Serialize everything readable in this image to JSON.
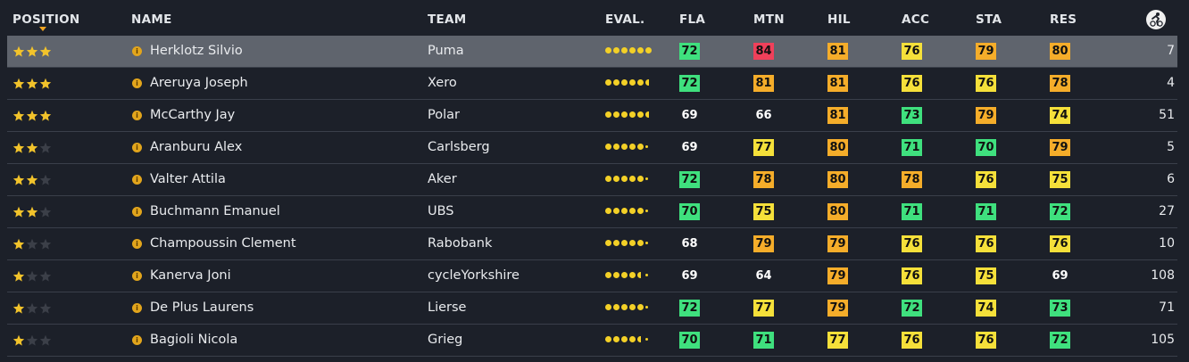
{
  "header": {
    "position": "POSITION",
    "name": "NAME",
    "team": "TEAM",
    "eval": "EVAL.",
    "fla": "FLA",
    "mtn": "MTN",
    "hil": "HIL",
    "acc": "ACC",
    "sta": "STA",
    "res": "RES",
    "last_col_icon": "cyclist-icon"
  },
  "colors": {
    "green": "#3fe07e",
    "yellow": "#f5e03a",
    "orange": "#f5ad2a",
    "red": "#f0405a",
    "accent": "#f2a623"
  },
  "rows": [
    {
      "stars": 3,
      "name": "Herklotz Silvio",
      "team": "Puma",
      "eval": 6.0,
      "fla": {
        "v": "72",
        "c": "green"
      },
      "mtn": {
        "v": "84",
        "c": "red"
      },
      "hil": {
        "v": "81",
        "c": "orange"
      },
      "acc": {
        "v": "76",
        "c": "yellow"
      },
      "sta": {
        "v": "79",
        "c": "orange"
      },
      "res": {
        "v": "80",
        "c": "orange"
      },
      "num": "7",
      "selected": true
    },
    {
      "stars": 3,
      "name": "Areruya Joseph",
      "team": "Xero",
      "eval": 5.7,
      "fla": {
        "v": "72",
        "c": "green"
      },
      "mtn": {
        "v": "81",
        "c": "orange"
      },
      "hil": {
        "v": "81",
        "c": "orange"
      },
      "acc": {
        "v": "76",
        "c": "yellow"
      },
      "sta": {
        "v": "76",
        "c": "yellow"
      },
      "res": {
        "v": "78",
        "c": "orange"
      },
      "num": "4"
    },
    {
      "stars": 3,
      "name": "McCarthy Jay",
      "team": "Polar",
      "eval": 5.6,
      "fla": {
        "v": "69",
        "c": "plain"
      },
      "mtn": {
        "v": "66",
        "c": "plain"
      },
      "hil": {
        "v": "81",
        "c": "orange"
      },
      "acc": {
        "v": "73",
        "c": "green"
      },
      "sta": {
        "v": "79",
        "c": "orange"
      },
      "res": {
        "v": "74",
        "c": "yellow"
      },
      "num": "51"
    },
    {
      "stars": 2,
      "name": "Aranburu Alex",
      "team": "Carlsberg",
      "eval": 5.3,
      "fla": {
        "v": "69",
        "c": "plain"
      },
      "mtn": {
        "v": "77",
        "c": "yellow"
      },
      "hil": {
        "v": "80",
        "c": "orange"
      },
      "acc": {
        "v": "71",
        "c": "green"
      },
      "sta": {
        "v": "70",
        "c": "green"
      },
      "res": {
        "v": "79",
        "c": "orange"
      },
      "num": "5"
    },
    {
      "stars": 2,
      "name": "Valter Attila",
      "team": "Aker",
      "eval": 5.1,
      "fla": {
        "v": "72",
        "c": "green"
      },
      "mtn": {
        "v": "78",
        "c": "orange"
      },
      "hil": {
        "v": "80",
        "c": "orange"
      },
      "acc": {
        "v": "78",
        "c": "orange"
      },
      "sta": {
        "v": "76",
        "c": "yellow"
      },
      "res": {
        "v": "75",
        "c": "yellow"
      },
      "num": "6"
    },
    {
      "stars": 2,
      "name": "Buchmann Emanuel",
      "team": "UBS",
      "eval": 5.1,
      "fla": {
        "v": "70",
        "c": "green"
      },
      "mtn": {
        "v": "75",
        "c": "yellow"
      },
      "hil": {
        "v": "80",
        "c": "orange"
      },
      "acc": {
        "v": "71",
        "c": "green"
      },
      "sta": {
        "v": "71",
        "c": "green"
      },
      "res": {
        "v": "72",
        "c": "green"
      },
      "num": "27"
    },
    {
      "stars": 1,
      "name": "Champoussin Clement",
      "team": "Rabobank",
      "eval": 5.1,
      "fla": {
        "v": "68",
        "c": "plain"
      },
      "mtn": {
        "v": "79",
        "c": "orange"
      },
      "hil": {
        "v": "79",
        "c": "orange"
      },
      "acc": {
        "v": "76",
        "c": "yellow"
      },
      "sta": {
        "v": "76",
        "c": "yellow"
      },
      "res": {
        "v": "76",
        "c": "yellow"
      },
      "num": "10"
    },
    {
      "stars": 1,
      "name": "Kanerva Joni",
      "team": "cycleYorkshire",
      "eval": 4.6,
      "fla": {
        "v": "69",
        "c": "plain"
      },
      "mtn": {
        "v": "64",
        "c": "plain"
      },
      "hil": {
        "v": "79",
        "c": "orange"
      },
      "acc": {
        "v": "76",
        "c": "yellow"
      },
      "sta": {
        "v": "75",
        "c": "yellow"
      },
      "res": {
        "v": "69",
        "c": "plain"
      },
      "num": "108"
    },
    {
      "stars": 1,
      "name": "De Plus Laurens",
      "team": "Lierse",
      "eval": 5.1,
      "fla": {
        "v": "72",
        "c": "green"
      },
      "mtn": {
        "v": "77",
        "c": "yellow"
      },
      "hil": {
        "v": "79",
        "c": "orange"
      },
      "acc": {
        "v": "72",
        "c": "green"
      },
      "sta": {
        "v": "74",
        "c": "yellow"
      },
      "res": {
        "v": "73",
        "c": "green"
      },
      "num": "71"
    },
    {
      "stars": 1,
      "name": "Bagioli Nicola",
      "team": "Grieg",
      "eval": 4.7,
      "fla": {
        "v": "70",
        "c": "green"
      },
      "mtn": {
        "v": "71",
        "c": "green"
      },
      "hil": {
        "v": "77",
        "c": "yellow"
      },
      "acc": {
        "v": "76",
        "c": "yellow"
      },
      "sta": {
        "v": "76",
        "c": "yellow"
      },
      "res": {
        "v": "72",
        "c": "green"
      },
      "num": "105"
    }
  ]
}
